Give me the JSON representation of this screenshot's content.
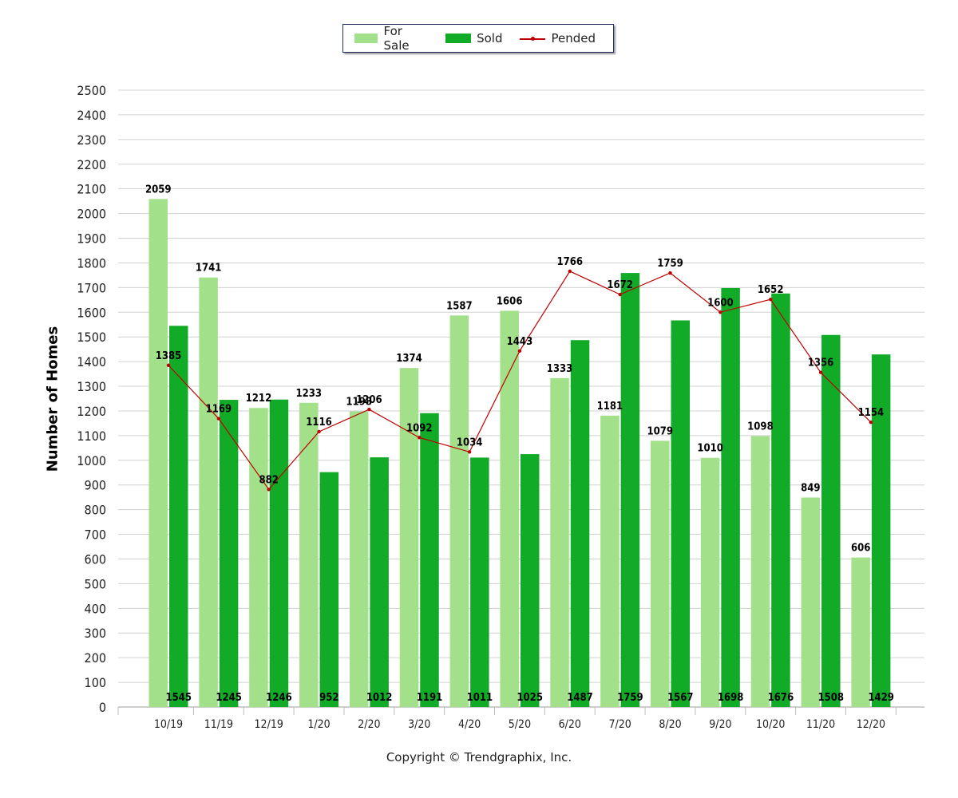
{
  "legend": {
    "for_sale_label": "For Sale",
    "sold_label": "Sold",
    "pended_label": "Pended"
  },
  "copyright": "Copyright © Trendgraphix, Inc.",
  "colors": {
    "for_sale": "#a3e08a",
    "sold": "#12ab28",
    "pended": "#c00000",
    "grid": "#d0d0d0"
  },
  "chart_data": {
    "type": "bar",
    "title": "",
    "xlabel": "",
    "ylabel": "Number of Homes",
    "ylim": [
      0,
      2500
    ],
    "y_ticks": [
      0,
      100,
      200,
      300,
      400,
      500,
      600,
      700,
      800,
      900,
      1000,
      1100,
      1200,
      1300,
      1400,
      1500,
      1600,
      1700,
      1800,
      1900,
      2000,
      2100,
      2200,
      2300,
      2400,
      2500
    ],
    "grid": true,
    "legend_position": "top-center",
    "categories": [
      "10/19",
      "11/19",
      "12/19",
      "1/20",
      "2/20",
      "3/20",
      "4/20",
      "5/20",
      "6/20",
      "7/20",
      "8/20",
      "9/20",
      "10/20",
      "11/20",
      "12/20"
    ],
    "series": [
      {
        "name": "For Sale",
        "type": "bar",
        "values": [
          2059,
          1741,
          1212,
          1233,
          1198,
          1374,
          1587,
          1606,
          1333,
          1181,
          1079,
          1010,
          1098,
          849,
          606
        ]
      },
      {
        "name": "Sold",
        "type": "bar",
        "values": [
          1545,
          1245,
          1246,
          952,
          1012,
          1191,
          1011,
          1025,
          1487,
          1759,
          1567,
          1698,
          1676,
          1508,
          1429
        ]
      },
      {
        "name": "Pended",
        "type": "line",
        "values": [
          1385,
          1169,
          882,
          1116,
          1206,
          1092,
          1034,
          1443,
          1766,
          1672,
          1759,
          1600,
          1652,
          1356,
          1154
        ]
      }
    ]
  }
}
